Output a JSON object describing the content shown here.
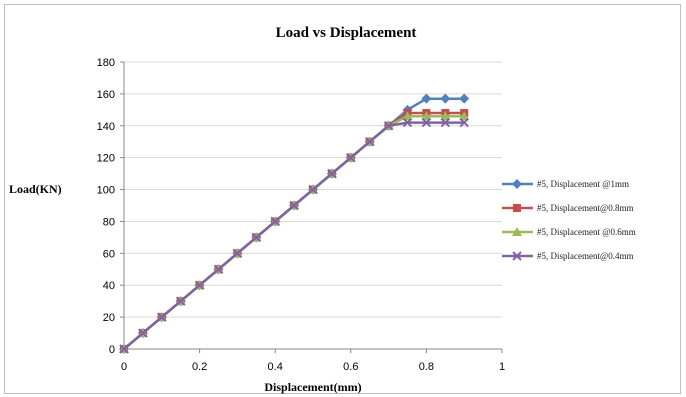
{
  "chart_data": {
    "type": "line",
    "title": "Load vs Displacement",
    "xlabel": "Displacement(mm)",
    "ylabel": "Load(KN)",
    "xlim": [
      0,
      1
    ],
    "ylim": [
      0,
      180
    ],
    "x_ticks": [
      "0",
      "0.2",
      "0.4",
      "0.6",
      "0.8",
      "1"
    ],
    "y_ticks": [
      "0",
      "20",
      "40",
      "60",
      "80",
      "100",
      "120",
      "140",
      "160",
      "180"
    ],
    "grid": true,
    "legend_position": "right",
    "series": [
      {
        "name": "#5, Displacement @1mm",
        "color": "#4f81bd",
        "marker": "diamond",
        "x": [
          0,
          0.05,
          0.1,
          0.15,
          0.2,
          0.25,
          0.3,
          0.35,
          0.4,
          0.45,
          0.5,
          0.55,
          0.6,
          0.65,
          0.7,
          0.75,
          0.8,
          0.85,
          0.9
        ],
        "y": [
          0,
          10,
          20,
          30,
          40,
          50,
          60,
          70,
          80,
          90,
          100,
          110,
          120,
          130,
          140,
          150,
          157,
          157,
          157
        ]
      },
      {
        "name": "#5, Displacement@0.8mm",
        "color": "#c0504d",
        "marker": "square",
        "x": [
          0,
          0.05,
          0.1,
          0.15,
          0.2,
          0.25,
          0.3,
          0.35,
          0.4,
          0.45,
          0.5,
          0.55,
          0.6,
          0.65,
          0.7,
          0.75,
          0.8,
          0.85,
          0.9
        ],
        "y": [
          0,
          10,
          20,
          30,
          40,
          50,
          60,
          70,
          80,
          90,
          100,
          110,
          120,
          130,
          140,
          148,
          148,
          148,
          148
        ]
      },
      {
        "name": "#5, Displacement @0.6mm",
        "color": "#9bbb59",
        "marker": "triangle",
        "x": [
          0,
          0.05,
          0.1,
          0.15,
          0.2,
          0.25,
          0.3,
          0.35,
          0.4,
          0.45,
          0.5,
          0.55,
          0.6,
          0.65,
          0.7,
          0.75,
          0.8,
          0.85,
          0.9
        ],
        "y": [
          0,
          10,
          20,
          30,
          40,
          50,
          60,
          70,
          80,
          90,
          100,
          110,
          120,
          130,
          140,
          146,
          146,
          146,
          146
        ]
      },
      {
        "name": "#5, Displacement@0.4mm",
        "color": "#8064a2",
        "marker": "x",
        "x": [
          0,
          0.05,
          0.1,
          0.15,
          0.2,
          0.25,
          0.3,
          0.35,
          0.4,
          0.45,
          0.5,
          0.55,
          0.6,
          0.65,
          0.7,
          0.75,
          0.8,
          0.85,
          0.9
        ],
        "y": [
          0,
          10,
          20,
          30,
          40,
          50,
          60,
          70,
          80,
          90,
          100,
          110,
          120,
          130,
          140,
          142,
          142,
          142,
          142
        ]
      }
    ]
  }
}
